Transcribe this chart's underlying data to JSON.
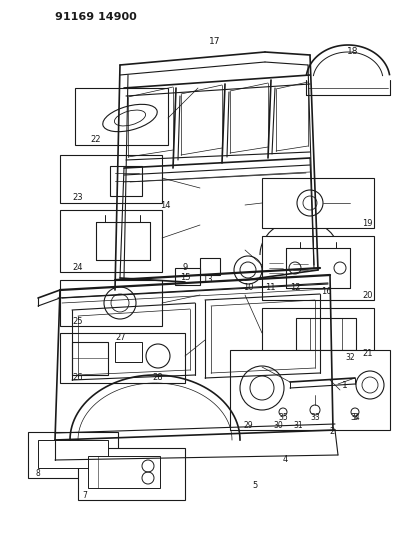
{
  "title": "91169 14900",
  "bg_color": "#ffffff",
  "line_color": "#000000",
  "fig_width": 3.99,
  "fig_height": 5.33,
  "dpi": 100
}
